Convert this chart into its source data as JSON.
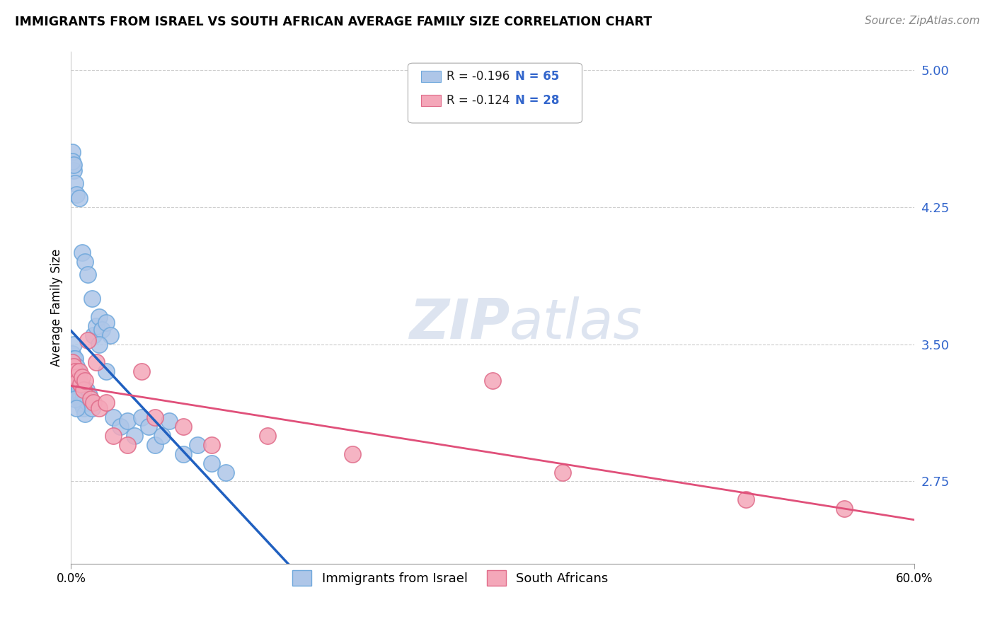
{
  "title": "IMMIGRANTS FROM ISRAEL VS SOUTH AFRICAN AVERAGE FAMILY SIZE CORRELATION CHART",
  "source": "Source: ZipAtlas.com",
  "ylabel": "Average Family Size",
  "xlim": [
    0.0,
    0.6
  ],
  "ylim": [
    2.3,
    5.1
  ],
  "yticks": [
    2.75,
    3.5,
    4.25,
    5.0
  ],
  "xticks": [
    0.0,
    0.6
  ],
  "xticklabels": [
    "0.0%",
    "60.0%"
  ],
  "yticklabels_right": [
    "2.75",
    "3.50",
    "4.25",
    "5.00"
  ],
  "israel_color": "#aec6e8",
  "israel_edge": "#6fa8dc",
  "sa_color": "#f4a7b9",
  "sa_edge": "#e06c8a",
  "trend_israel_color": "#2060c0",
  "trend_sa_color": "#e0507a",
  "trend_dashed_color": "#8ab0d8",
  "watermark_color": "#dde4f0",
  "israel_x": [
    0.001,
    0.001,
    0.001,
    0.002,
    0.002,
    0.002,
    0.003,
    0.003,
    0.003,
    0.004,
    0.004,
    0.004,
    0.005,
    0.005,
    0.005,
    0.006,
    0.006,
    0.006,
    0.007,
    0.007,
    0.007,
    0.008,
    0.008,
    0.009,
    0.009,
    0.01,
    0.01,
    0.011,
    0.012,
    0.013,
    0.015,
    0.016,
    0.018,
    0.02,
    0.022,
    0.025,
    0.028,
    0.03,
    0.035,
    0.04,
    0.045,
    0.05,
    0.055,
    0.06,
    0.065,
    0.07,
    0.08,
    0.09,
    0.1,
    0.11,
    0.002,
    0.003,
    0.004,
    0.006,
    0.008,
    0.01,
    0.012,
    0.015,
    0.02,
    0.025,
    0.001,
    0.001,
    0.002,
    0.003,
    0.004
  ],
  "israel_y": [
    3.45,
    3.38,
    3.32,
    3.5,
    3.42,
    3.35,
    3.42,
    3.35,
    3.28,
    3.38,
    3.3,
    3.25,
    3.35,
    3.28,
    3.22,
    3.32,
    3.25,
    3.2,
    3.28,
    3.22,
    3.18,
    3.25,
    3.18,
    3.22,
    3.15,
    3.2,
    3.12,
    3.25,
    3.18,
    3.22,
    3.15,
    3.55,
    3.6,
    3.65,
    3.58,
    3.62,
    3.55,
    3.1,
    3.05,
    3.08,
    3.0,
    3.1,
    3.05,
    2.95,
    3.0,
    3.08,
    2.9,
    2.95,
    2.85,
    2.8,
    4.45,
    4.38,
    4.32,
    4.3,
    4.0,
    3.95,
    3.88,
    3.75,
    3.5,
    3.35,
    4.55,
    4.5,
    4.48,
    3.2,
    3.15
  ],
  "sa_x": [
    0.001,
    0.002,
    0.003,
    0.004,
    0.005,
    0.006,
    0.007,
    0.008,
    0.009,
    0.01,
    0.012,
    0.014,
    0.016,
    0.018,
    0.02,
    0.025,
    0.03,
    0.04,
    0.05,
    0.06,
    0.08,
    0.1,
    0.14,
    0.2,
    0.3,
    0.35,
    0.48,
    0.55
  ],
  "sa_y": [
    3.4,
    3.38,
    3.35,
    3.32,
    3.3,
    3.35,
    3.28,
    3.32,
    3.25,
    3.3,
    3.52,
    3.2,
    3.18,
    3.4,
    3.15,
    3.18,
    3.0,
    2.95,
    3.35,
    3.1,
    3.05,
    2.95,
    3.0,
    2.9,
    3.3,
    2.8,
    2.65,
    2.6
  ]
}
